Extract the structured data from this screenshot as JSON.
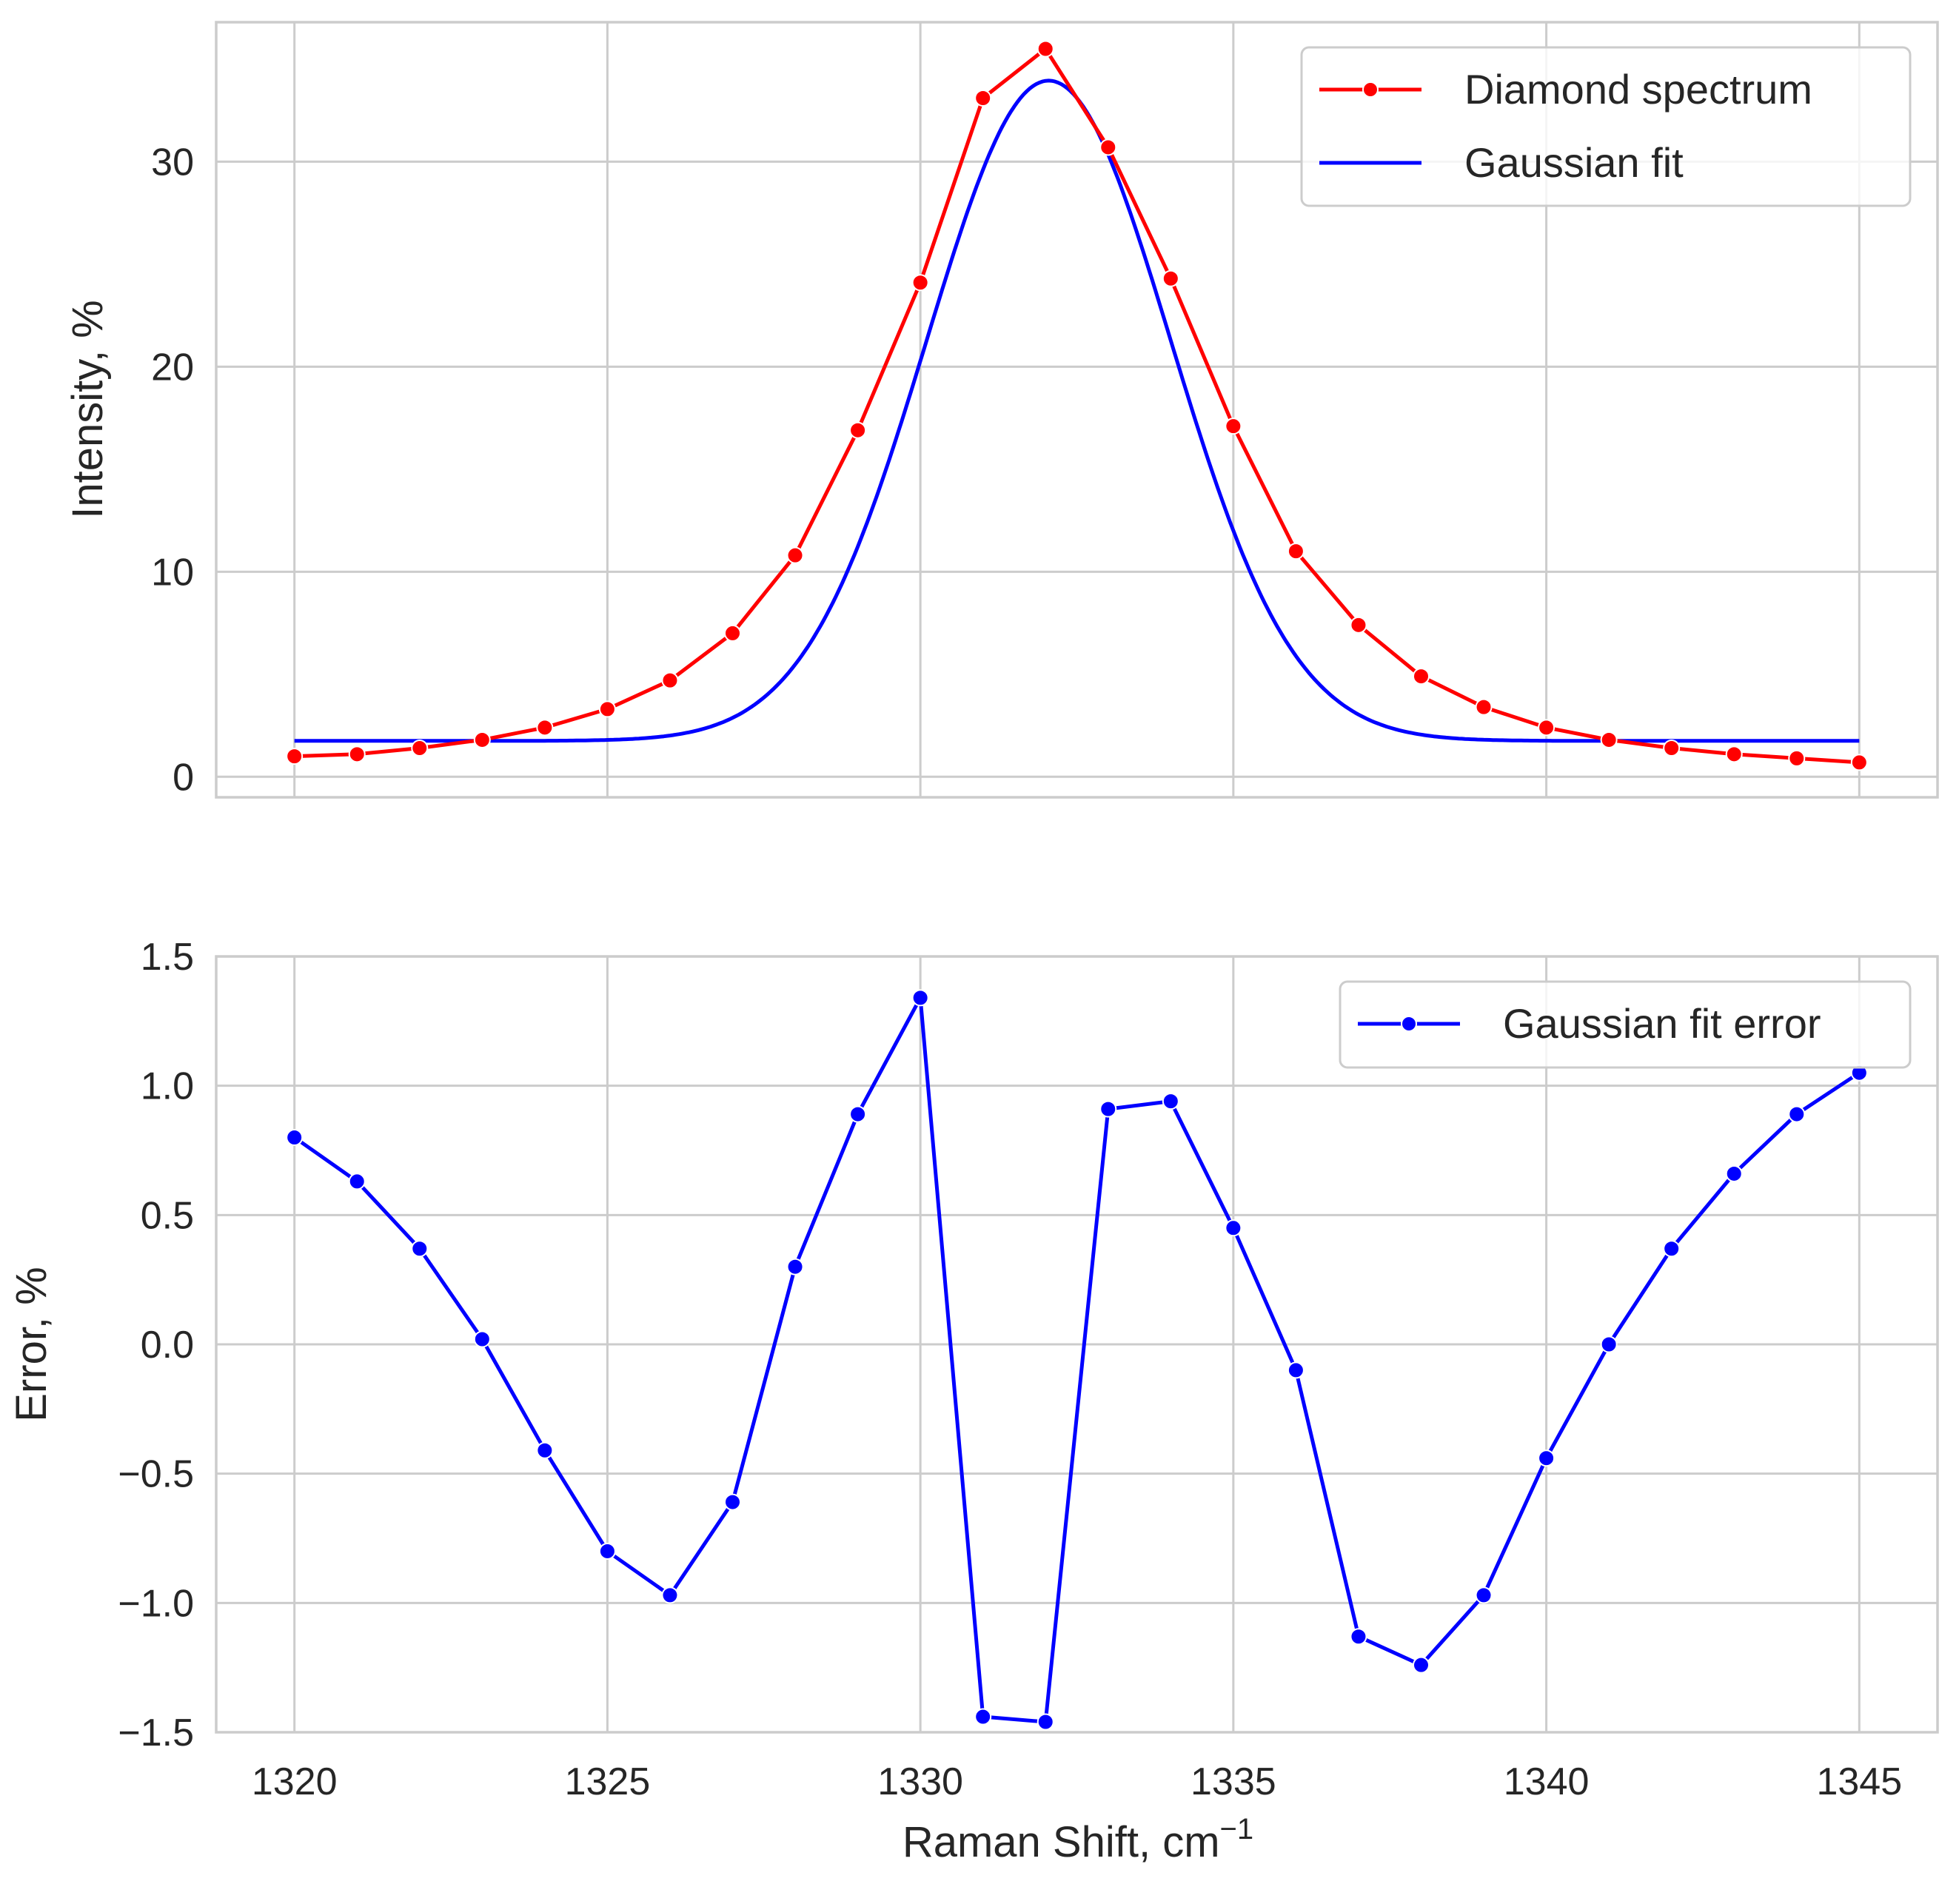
{
  "chart_data": [
    {
      "type": "line",
      "ylabel": "Intensity, %",
      "xlabel": "",
      "xlim": [
        1318.75,
        1346.25
      ],
      "ylim": [
        -1,
        36.8
      ],
      "x_ticks": [
        1320,
        1325,
        1330,
        1335,
        1340,
        1345
      ],
      "y_ticks": [
        0,
        10,
        20,
        30
      ],
      "y_tick_labels": [
        "0",
        "10",
        "20",
        "30"
      ],
      "grid": true,
      "legend_position": "top-right",
      "series": [
        {
          "name": "Diamond spectrum",
          "color": "#ff0000",
          "marker": "circle",
          "x": [
            1320,
            1321,
            1322,
            1323,
            1324,
            1325,
            1326,
            1327,
            1328,
            1329,
            1330,
            1331,
            1332,
            1333,
            1334,
            1335,
            1336,
            1337,
            1338,
            1339,
            1340,
            1341,
            1342,
            1343,
            1344,
            1345
          ],
          "values": [
            1.0,
            1.1,
            1.4,
            1.8,
            2.4,
            3.3,
            4.7,
            7.0,
            10.8,
            16.9,
            24.1,
            33.1,
            35.5,
            30.7,
            24.3,
            17.1,
            11.0,
            7.4,
            4.9,
            3.4,
            2.4,
            1.8,
            1.4,
            1.1,
            0.9,
            0.7
          ]
        },
        {
          "name": "Gaussian fit",
          "color": "#0000ff",
          "marker": "none",
          "model": {
            "baseline": 1.75,
            "amplitude": 32.2,
            "center": 1332.05,
            "sigma": 1.95
          },
          "x_range": [
            1320,
            1345
          ]
        }
      ]
    },
    {
      "type": "line",
      "ylabel": "Error, %",
      "xlabel": "Raman Shift, cm",
      "xlabel_superscript": "−1",
      "xlim": [
        1318.75,
        1346.25
      ],
      "ylim": [
        -1.5,
        1.5
      ],
      "x_ticks": [
        1320,
        1325,
        1330,
        1335,
        1340,
        1345
      ],
      "x_tick_labels": [
        "1320",
        "1325",
        "1330",
        "1335",
        "1340",
        "1345"
      ],
      "y_ticks": [
        -1.5,
        -1.0,
        -0.5,
        0.0,
        0.5,
        1.0,
        1.5
      ],
      "y_tick_labels": [
        "−1.5",
        "−1.0",
        "−0.5",
        "0.0",
        "0.5",
        "1.0",
        "1.5"
      ],
      "grid": true,
      "legend_position": "top-right",
      "series": [
        {
          "name": "Gaussian fit error",
          "color": "#0000ff",
          "marker": "circle",
          "x": [
            1320,
            1321,
            1322,
            1323,
            1324,
            1325,
            1326,
            1327,
            1328,
            1329,
            1330,
            1331,
            1332,
            1333,
            1334,
            1335,
            1336,
            1337,
            1338,
            1339,
            1340,
            1341,
            1342,
            1343,
            1344,
            1345
          ],
          "values": [
            0.8,
            0.63,
            0.37,
            0.02,
            -0.41,
            -0.8,
            -0.97,
            -0.61,
            0.3,
            0.89,
            1.34,
            -1.44,
            -1.46,
            0.91,
            0.94,
            0.45,
            -0.1,
            -1.13,
            -1.24,
            -0.97,
            -0.44,
            0.0,
            0.37,
            0.66,
            0.89,
            1.05
          ]
        }
      ]
    }
  ]
}
